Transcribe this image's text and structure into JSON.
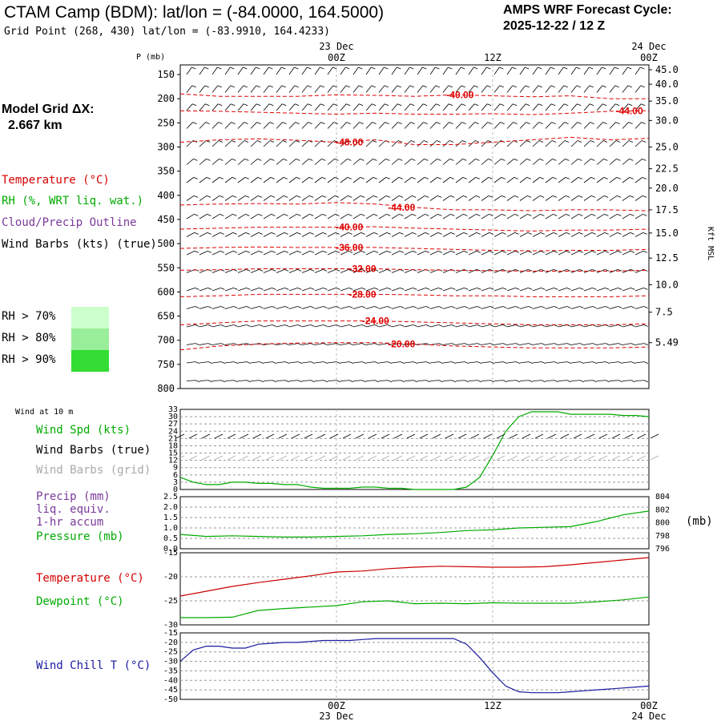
{
  "header": {
    "title": "CTAM Camp (BDM):  lat/lon = (-84.0000, 164.5000)",
    "subtitle": "Grid Point (268, 430) lat/lon = (-83.9910, 164.4233)",
    "cycle_line1": "AMPS WRF Forecast Cycle:",
    "cycle_line2": "2025-12-22 / 12  Z",
    "grid_line1": "Model Grid ΔX:",
    "grid_line2": "2.667 km"
  },
  "legend": {
    "temperature": "Temperature (°C)",
    "rh": "RH (%, WRT liq. wat.)",
    "cloud": "Cloud/Precip Outline",
    "wind": "Wind Barbs (kts) (true)",
    "rh70": "RH > 70%",
    "rh80": "RH > 80%",
    "rh90": "RH > 90%",
    "colors": {
      "rh70": "#ccffcc",
      "rh80": "#99ee99",
      "rh90": "#33dd33",
      "temp": "#e00000"
    }
  },
  "panel_labels": {
    "wind10m": "Wind at 10 m",
    "wind_spd": "Wind Spd (kts)",
    "barbs_true": "Wind Barbs (true)",
    "barbs_grid": "Wind Barbs (grid)",
    "precip1": "Precip (mm)",
    "precip2": "liq. equiv.",
    "precip3": "1-hr accum",
    "pressure": "Pressure (mb)",
    "pressure_unit": "(mb)",
    "temp": "Temperature (°C)",
    "dewpoint": "Dewpoint (°C)",
    "windchill": "Wind Chill T (°C)"
  },
  "chart_data": [
    {
      "type": "heatmap",
      "name_hint": "cross-section",
      "xlabel": "",
      "ylabel": "P (mb)",
      "y2label": "Kft MSL",
      "time_top": [
        {
          "t": 12,
          "label": "00Z",
          "date": "23 Dec"
        },
        {
          "t": 24,
          "label": "12Z",
          "date": ""
        },
        {
          "t": 36,
          "label": "00Z",
          "date": "24 Dec"
        }
      ],
      "xlim": [
        0,
        36
      ],
      "pressure_ticks": [
        150,
        200,
        250,
        300,
        350,
        400,
        450,
        500,
        550,
        600,
        650,
        700,
        750,
        800
      ],
      "height_ticks": [
        {
          "p": 140,
          "label": "45.0"
        },
        {
          "p": 170,
          "label": "40.0"
        },
        {
          "p": 205,
          "label": "35.0"
        },
        {
          "p": 245,
          "label": "30.0"
        },
        {
          "p": 300,
          "label": "25.0"
        },
        {
          "p": 345,
          "label": "22.5"
        },
        {
          "p": 385,
          "label": "20.0"
        },
        {
          "p": 430,
          "label": "17.5"
        },
        {
          "p": 478,
          "label": "15.0"
        },
        {
          "p": 530,
          "label": "12.5"
        },
        {
          "p": 585,
          "label": "10.0"
        },
        {
          "p": 642,
          "label": "7.5"
        },
        {
          "p": 705,
          "label": "5.49"
        }
      ],
      "temperature_contours": [
        {
          "label": "-40.00",
          "label_t": 21.5,
          "p": [
            190,
            195,
            195,
            195,
            192,
            193,
            195,
            192,
            194,
            196,
            194,
            200,
            200
          ]
        },
        {
          "label": "-44.00",
          "label_t": 34.5,
          "p": [
            225,
            226,
            228,
            230,
            232,
            230,
            232,
            232,
            231,
            233,
            230,
            226,
            225
          ]
        },
        {
          "label": "-48.00",
          "label_t": 13,
          "p": [
            290,
            285,
            283,
            286,
            290,
            285,
            295,
            295,
            290,
            285,
            280,
            285,
            282
          ]
        },
        {
          "label": "-44.00",
          "label_t": 17,
          "p": [
            420,
            418,
            417,
            418,
            415,
            418,
            425,
            430,
            430,
            432,
            430,
            430,
            432
          ]
        },
        {
          "label": "-40.00",
          "label_t": 13,
          "p": [
            470,
            468,
            466,
            466,
            466,
            465,
            468,
            470,
            472,
            474,
            472,
            472,
            470
          ]
        },
        {
          "label": "-36.00",
          "label_t": 13,
          "p": [
            510,
            508,
            507,
            508,
            508,
            508,
            510,
            512,
            514,
            515,
            514,
            514,
            512
          ]
        },
        {
          "label": "-32.00",
          "label_t": 14,
          "p": [
            555,
            554,
            552,
            552,
            552,
            552,
            554,
            555,
            556,
            557,
            557,
            557,
            555
          ]
        },
        {
          "label": "-28.00",
          "label_t": 14,
          "p": [
            610,
            608,
            605,
            605,
            605,
            605,
            606,
            608,
            608,
            610,
            610,
            610,
            608
          ]
        },
        {
          "label": "-24.00",
          "label_t": 15,
          "p": [
            668,
            664,
            660,
            660,
            660,
            660,
            662,
            664,
            666,
            668,
            668,
            668,
            666
          ]
        },
        {
          "label": "-20.00",
          "label_t": 17,
          "p": [
            720,
            712,
            708,
            706,
            705,
            705,
            708,
            712,
            714,
            716,
            716,
            716,
            714
          ]
        }
      ],
      "temperature_values": [
        "-40.00",
        "-44.00",
        "-48.00",
        "-44.00",
        "-40.00",
        "-36.00",
        "-32.00",
        "-28.00",
        "-24.00",
        "-20.00"
      ]
    },
    {
      "type": "line",
      "name_hint": "wind-10m",
      "ylim": [
        0,
        33
      ],
      "yticks": [
        0,
        3,
        6,
        9,
        12,
        15,
        18,
        21,
        24,
        27,
        30,
        33
      ],
      "x": [
        0,
        1,
        2,
        3,
        4,
        5,
        6,
        7,
        8,
        9,
        10,
        11,
        12,
        13,
        14,
        15,
        16,
        17,
        18,
        19,
        20,
        21,
        22,
        23,
        24,
        25,
        26,
        27,
        28,
        29,
        30,
        31,
        32,
        33,
        34,
        35,
        36
      ],
      "series": [
        {
          "name": "Wind Spd (kts)",
          "color": "#00aa00",
          "values": [
            5,
            3,
            2,
            2,
            3,
            3,
            2.5,
            2.5,
            2,
            2,
            1,
            0.5,
            0.5,
            0.5,
            1,
            1,
            0.5,
            0.5,
            0,
            0,
            0,
            0,
            1,
            5,
            14,
            24,
            30,
            32,
            32,
            32,
            31,
            31,
            31,
            31,
            30.5,
            30.5,
            30
          ]
        }
      ]
    },
    {
      "type": "line",
      "name_hint": "precip-pressure",
      "ylim": [
        0,
        2.5
      ],
      "yticks": [
        0.0,
        0.5,
        1.0,
        1.5,
        2.0,
        2.5
      ],
      "y2lim": [
        796,
        804
      ],
      "y2ticks": [
        796,
        798,
        800,
        802,
        804
      ],
      "x": [
        0,
        2,
        4,
        6,
        8,
        10,
        12,
        14,
        16,
        18,
        20,
        22,
        24,
        26,
        28,
        30,
        32,
        34,
        36
      ],
      "series": [
        {
          "name": "Pressure (mb)",
          "color": "#00aa00",
          "values": [
            798.2,
            797.9,
            798.0,
            797.9,
            797.8,
            797.8,
            797.9,
            798.0,
            798.2,
            798.3,
            798.5,
            798.8,
            798.9,
            799.2,
            799.3,
            799.4,
            800.2,
            801.2,
            801.8
          ]
        }
      ]
    },
    {
      "type": "line",
      "name_hint": "temp-dewpoint",
      "ylim": [
        -30,
        -15
      ],
      "yticks": [
        -30,
        -25,
        -20,
        -15
      ],
      "x": [
        0,
        2,
        4,
        6,
        8,
        10,
        12,
        14,
        16,
        18,
        20,
        22,
        24,
        26,
        28,
        30,
        32,
        34,
        36
      ],
      "series": [
        {
          "name": "Temperature (°C)",
          "color": "#cc0000",
          "values": [
            -24,
            -23,
            -22,
            -21.2,
            -20.5,
            -19.8,
            -19,
            -18.8,
            -18.3,
            -18,
            -17.8,
            -17.9,
            -18,
            -18,
            -17.9,
            -17.5,
            -17,
            -16.5,
            -16
          ]
        },
        {
          "name": "Dewpoint (°C)",
          "color": "#00aa00",
          "values": [
            -28.5,
            -28.5,
            -28.4,
            -27,
            -26.6,
            -26.3,
            -26,
            -25.2,
            -25,
            -25.6,
            -25.5,
            -25.6,
            -25.4,
            -25.5,
            -25.5,
            -25.5,
            -25.2,
            -24.8,
            -24.2
          ]
        }
      ]
    },
    {
      "type": "line",
      "name_hint": "wind-chill",
      "ylim": [
        -50,
        -15
      ],
      "yticks": [
        -50,
        -45,
        -40,
        -35,
        -30,
        -25,
        -20,
        -15
      ],
      "time_bottom": [
        {
          "t": 12,
          "label": "00Z",
          "date": "23 Dec"
        },
        {
          "t": 24,
          "label": "12Z",
          "date": ""
        },
        {
          "t": 36,
          "label": "00Z",
          "date": "24 Dec"
        }
      ],
      "x": [
        0,
        1,
        2,
        3,
        4,
        5,
        6,
        7,
        8,
        9,
        10,
        11,
        12,
        13,
        14,
        15,
        16,
        17,
        18,
        19,
        20,
        21,
        22,
        23,
        24,
        25,
        26,
        27,
        28,
        29,
        30,
        31,
        32,
        33,
        34,
        35,
        36
      ],
      "series": [
        {
          "name": "Wind Chill T (°C)",
          "color": "#1a1aa0",
          "values": [
            -30,
            -24,
            -22,
            -22,
            -23,
            -23,
            -21,
            -20.5,
            -20,
            -20,
            -19.5,
            -19,
            -19,
            -19,
            -18.5,
            -18,
            -18,
            -18,
            -18,
            -18,
            -18,
            -18,
            -21,
            -28,
            -36,
            -43,
            -46,
            -46.5,
            -46.5,
            -46.5,
            -46,
            -45.5,
            -45,
            -44.5,
            -44,
            -43.5,
            -43
          ]
        }
      ]
    }
  ]
}
